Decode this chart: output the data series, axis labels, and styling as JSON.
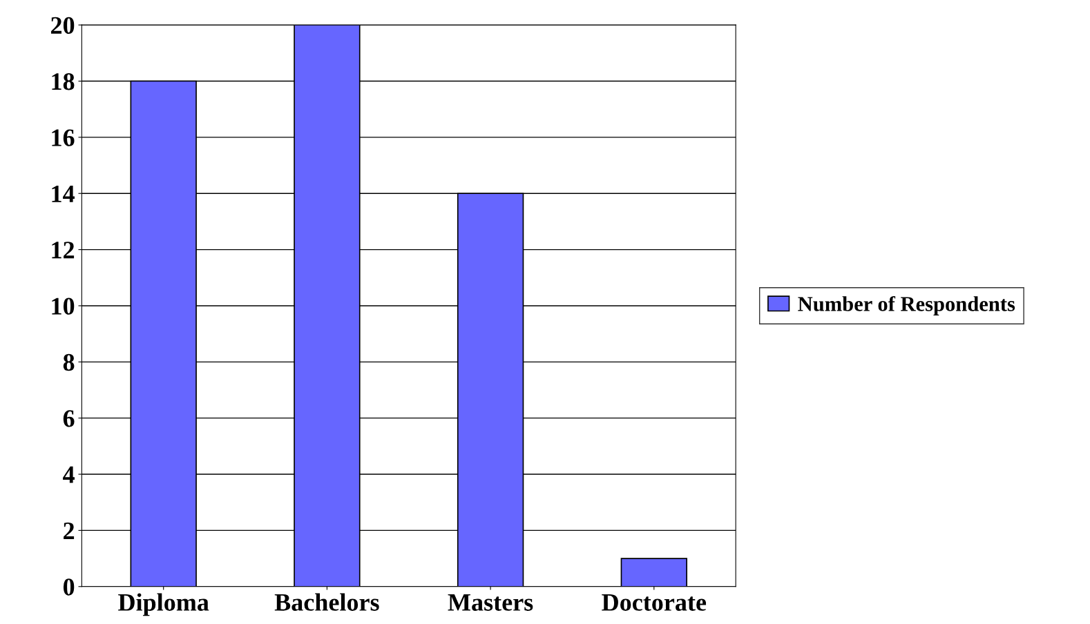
{
  "chart_data": {
    "type": "bar",
    "categories": [
      "Diploma",
      "Bachelors",
      "Masters",
      "Doctorate"
    ],
    "series": [
      {
        "name": "Number of Respondents",
        "color": "#6666ff",
        "values": [
          18,
          20,
          14,
          1
        ]
      }
    ],
    "ylim": [
      0,
      20
    ],
    "yticks": [
      0,
      2,
      4,
      6,
      8,
      10,
      12,
      14,
      16,
      18,
      20
    ],
    "grid": "y",
    "legend": "right"
  }
}
